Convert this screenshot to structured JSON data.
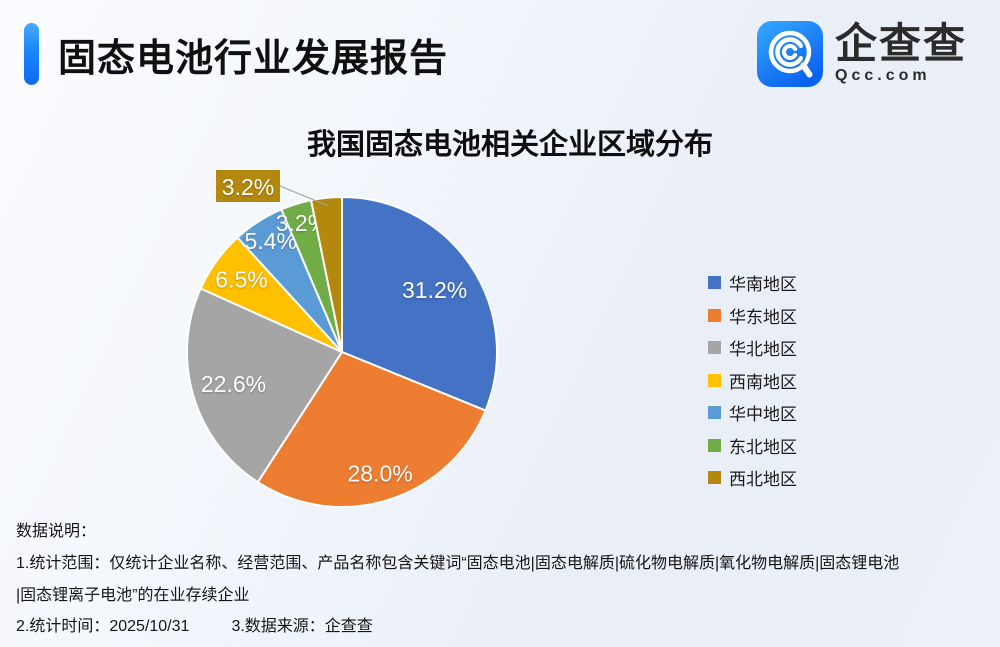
{
  "header": {
    "title": "固态电池行业发展报告"
  },
  "logo": {
    "name": "企查查",
    "domain": "Qcc.com",
    "icon": "qcc-magnifier-icon",
    "brand_blue": "#0a66f0"
  },
  "chart_data": {
    "type": "pie",
    "title": "我国固态电池相关企业区域分布",
    "categories": [
      "华南地区",
      "华东地区",
      "华北地区",
      "西南地区",
      "华中地区",
      "东北地区",
      "西北地区"
    ],
    "values": [
      31.2,
      28.0,
      22.6,
      6.5,
      5.4,
      3.2,
      3.2
    ],
    "labels": [
      "31.2%",
      "28.0%",
      "22.6%",
      "6.5%",
      "5.4%",
      "3.2%",
      "3.2%"
    ],
    "colors": [
      "#4472C4",
      "#ED7D31",
      "#A5A5A5",
      "#FFC000",
      "#5B9BD5",
      "#70AD47",
      "#B3880D"
    ],
    "legend_position": "right",
    "start_angle_deg": 0,
    "callout": {
      "index": 6,
      "text": "3.2%",
      "leader_color": "#a0a4ab"
    }
  },
  "footer": {
    "heading": "数据说明：",
    "line1": "1.统计范围：仅统计企业名称、经营范围、产品名称包含关键词“固态电池|固态电解质|硫化物电解质|氧化物电解质|固态锂电池",
    "line2": "|固态锂离子电池”的在业存续企业",
    "stat_time": "2.统计时间：2025/10/31",
    "source": "3.数据来源：企查查"
  }
}
